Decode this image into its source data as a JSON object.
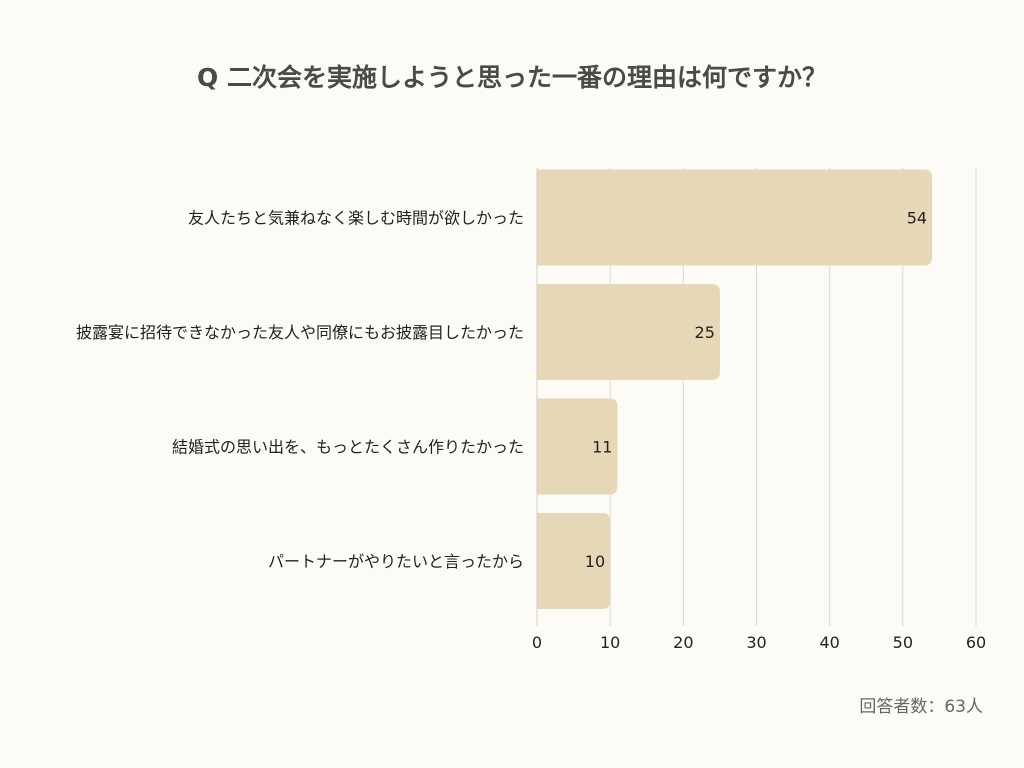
{
  "chart_data": {
    "type": "bar",
    "orientation": "horizontal",
    "title": "Q 二次会を実施しようと思った一番の理由は何ですか？",
    "categories": [
      "友人たちと気兼ねなく楽しむ時間が欲しかった",
      "披露宴に招待できなかった友人や同僚にもお披露目したかった",
      "結婚式の思い出を、もっとたくさん作りたかった",
      "パートナーがやりたいと言ったから"
    ],
    "values": [
      54,
      25,
      11,
      10
    ],
    "xlim": [
      0,
      60
    ],
    "x_ticks": [
      0,
      10,
      20,
      30,
      40,
      50,
      60
    ],
    "grid": "vertical",
    "bar_color": "#e6d8b7",
    "grid_color": "#d9d9d9",
    "data_labels": true
  },
  "footnote": "回答者数：63人"
}
